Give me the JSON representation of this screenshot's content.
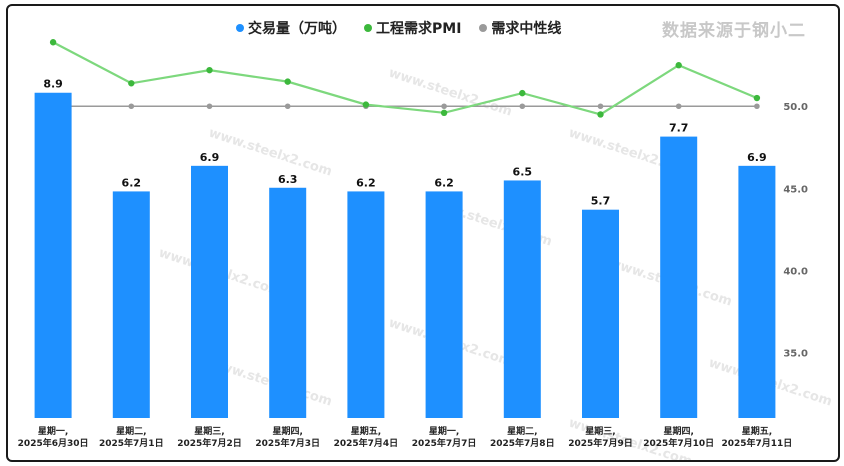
{
  "legend": {
    "bars": "交易量（万吨）",
    "pmi": "工程需求PMI",
    "neutral": "需求中性线"
  },
  "source_note": "数据来源于钢小二",
  "watermark": "www.steelx2.com",
  "colors": {
    "bar": "#1e90ff",
    "pmi_line": "#7dd87d",
    "pmi_point": "#3cb83c",
    "neutral_line": "#9a9a9a"
  },
  "chart_data": {
    "type": "bar",
    "categories": [
      [
        "星期一,",
        "2025年6月30日"
      ],
      [
        "星期二,",
        "2025年7月1日"
      ],
      [
        "星期三,",
        "2025年7月2日"
      ],
      [
        "星期四,",
        "2025年7月3日"
      ],
      [
        "星期五,",
        "2025年7月4日"
      ],
      [
        "星期一,",
        "2025年7月7日"
      ],
      [
        "星期二,",
        "2025年7月8日"
      ],
      [
        "星期三,",
        "2025年7月9日"
      ],
      [
        "星期四,",
        "2025年7月10日"
      ],
      [
        "星期五,",
        "2025年7月11日"
      ]
    ],
    "series": [
      {
        "name": "交易量（万吨）",
        "type": "bar",
        "values": [
          8.9,
          6.2,
          6.9,
          6.3,
          6.2,
          6.2,
          6.5,
          5.7,
          7.7,
          6.9
        ],
        "labels": [
          "8.9",
          "6.2",
          "6.9",
          "6.3",
          "6.2",
          "6.2",
          "6.5",
          "5.7",
          "7.7",
          "6.9"
        ],
        "ylim": [
          0,
          11
        ]
      },
      {
        "name": "工程需求PMI",
        "type": "line",
        "values": [
          53.9,
          51.4,
          52.2,
          51.5,
          50.1,
          49.6,
          50.8,
          49.5,
          52.5,
          50.5
        ]
      },
      {
        "name": "需求中性线",
        "type": "line",
        "values": [
          50,
          50,
          50,
          50,
          50,
          50,
          50,
          50,
          50,
          50
        ]
      }
    ],
    "right_axis": {
      "ticks": [
        35,
        40,
        45,
        50
      ],
      "tick_labels": [
        "35.0",
        "40.0",
        "45.0",
        "50.0"
      ],
      "ylim": [
        31,
        55.5
      ]
    }
  }
}
